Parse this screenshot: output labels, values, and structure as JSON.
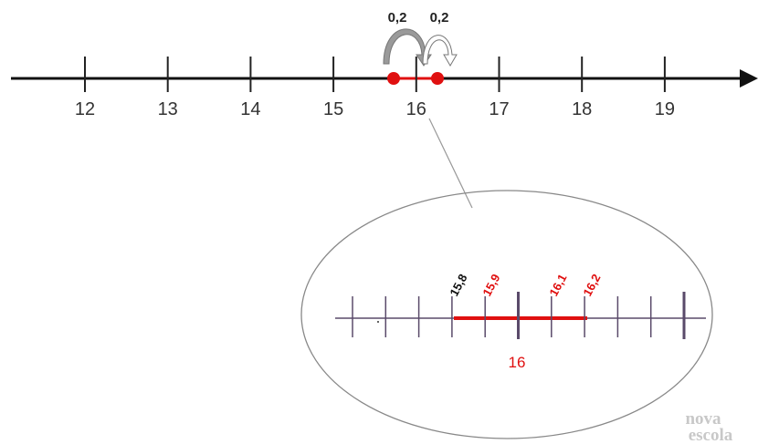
{
  "number_line": {
    "labels": [
      "12",
      "13",
      "14",
      "15",
      "16",
      "17",
      "18",
      "19"
    ]
  },
  "jumps": [
    "0,2",
    "0,2"
  ],
  "zoom": {
    "labels": [
      "15,8",
      "15,9",
      "16,1",
      "16,2"
    ],
    "center_label": "16"
  },
  "watermark": [
    "nova",
    "escola"
  ]
}
